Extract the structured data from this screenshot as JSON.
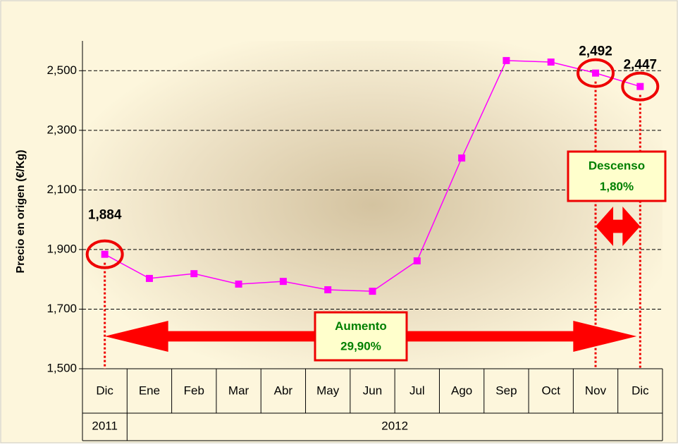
{
  "chart_data": {
    "type": "line",
    "y_label": "Precio en origen (€/Kg)",
    "categories": [
      "Dic",
      "Ene",
      "Feb",
      "Mar",
      "Abr",
      "May",
      "Jun",
      "Jul",
      "Ago",
      "Sep",
      "Oct",
      "Nov",
      "Dic"
    ],
    "x_groups": [
      "2011",
      "2012",
      null,
      null,
      null,
      null,
      null,
      null,
      null,
      null,
      null,
      null,
      null
    ],
    "series": [
      {
        "color": "#ff00ff",
        "values": [
          1.884,
          1.803,
          1.819,
          1.784,
          1.793,
          1.765,
          1.76,
          1.862,
          2.207,
          2.534,
          2.529,
          2.492,
          2.447
        ],
        "value_labels": [
          "1,884",
          null,
          null,
          null,
          null,
          null,
          null,
          null,
          null,
          null,
          null,
          "2,492",
          "2,447"
        ]
      }
    ],
    "ylim": [
      1.5,
      2.6
    ],
    "yticks": [
      {
        "value": 1.5,
        "label": "1,500"
      },
      {
        "value": 1.7,
        "label": "1,700"
      },
      {
        "value": 1.9,
        "label": "1,900"
      },
      {
        "value": 2.1,
        "label": "2,100"
      },
      {
        "value": 2.3,
        "label": "2,300"
      },
      {
        "value": 2.5,
        "label": "2,500"
      }
    ],
    "grid": true,
    "annotations": [
      {
        "title": "Aumento",
        "text": "29,90%"
      },
      {
        "title": "Descenso",
        "text": "1,80%"
      }
    ]
  }
}
